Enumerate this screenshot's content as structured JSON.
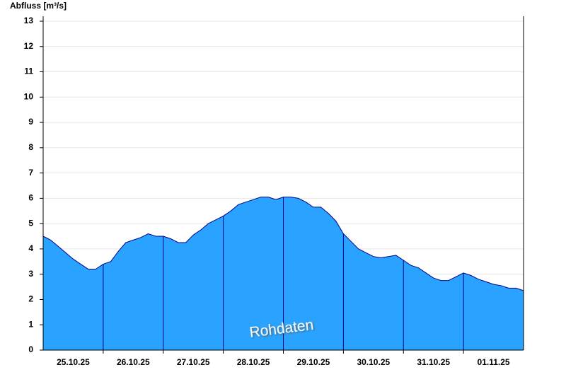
{
  "chart_data": {
    "type": "area",
    "y_axis_label": "Abfluss [m³/s]",
    "annotation": "Rohdaten",
    "xtick_labels": [
      "25.10.25",
      "26.10.25",
      "27.10.25",
      "28.10.25",
      "29.10.25",
      "30.10.25",
      "31.10.25",
      "01.11.25"
    ],
    "values": [
      4.5,
      4.35,
      4.1,
      3.85,
      3.6,
      3.4,
      3.2,
      3.2,
      3.4,
      3.5,
      3.9,
      4.25,
      4.35,
      4.45,
      4.6,
      4.5,
      4.5,
      4.4,
      4.25,
      4.25,
      4.55,
      4.75,
      5.0,
      5.15,
      5.3,
      5.5,
      5.75,
      5.85,
      5.95,
      6.05,
      6.05,
      5.95,
      6.05,
      6.05,
      6.0,
      5.85,
      5.65,
      5.65,
      5.4,
      5.1,
      4.6,
      4.3,
      4.0,
      3.85,
      3.7,
      3.65,
      3.7,
      3.75,
      3.55,
      3.35,
      3.25,
      3.05,
      2.85,
      2.75,
      2.75,
      2.9,
      3.05,
      2.95,
      2.8,
      2.7,
      2.6,
      2.55,
      2.45,
      2.45,
      2.35
    ],
    "color": "#29a3ff",
    "line_color": "#00008b",
    "ylim": [
      0,
      13.2
    ],
    "yticks": [
      0,
      1,
      2,
      3,
      4,
      5,
      6,
      7,
      8,
      9,
      10,
      11,
      12,
      13
    ],
    "grid": true
  }
}
